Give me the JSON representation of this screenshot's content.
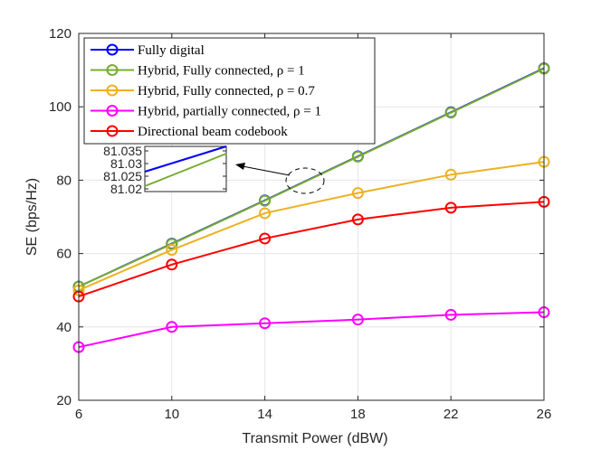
{
  "chart_data": {
    "type": "line",
    "title": "",
    "xlabel": "Transmit Power (dBW)",
    "ylabel": "SE (bps/Hz)",
    "x": [
      6,
      10,
      14,
      18,
      22,
      26
    ],
    "xlim": [
      6,
      26
    ],
    "ylim": [
      20,
      120
    ],
    "xticks": [
      6,
      10,
      14,
      18,
      22,
      26
    ],
    "yticks": [
      20,
      40,
      60,
      80,
      100,
      120
    ],
    "grid": true,
    "legend_position": "top-left",
    "series": [
      {
        "name": "Fully digital",
        "color": "#0000ff",
        "values": [
          51.0,
          62.7,
          74.5,
          86.5,
          98.5,
          110.5
        ]
      },
      {
        "name": "Hybrid, Fully connected, ρ = 1",
        "color": "#77ac30",
        "values": [
          51.0,
          62.6,
          74.4,
          86.4,
          98.4,
          110.4
        ]
      },
      {
        "name": "Hybrid, Fully connected, ρ = 0.7",
        "color": "#edb120",
        "values": [
          50.0,
          61.0,
          71.0,
          76.5,
          81.5,
          85.0
        ]
      },
      {
        "name": "Hybrid, partially connected, ρ = 1",
        "color": "#ff00ff",
        "values": [
          34.5,
          40.0,
          41.0,
          42.0,
          43.3,
          44.0
        ]
      },
      {
        "name": "Directional beam codebook",
        "color": "#ff0000",
        "values": [
          48.3,
          57.0,
          64.1,
          69.3,
          72.5,
          74.1
        ]
      }
    ],
    "inset": {
      "yticks": [
        "81.035",
        "81.03",
        "81.025",
        "81.02"
      ],
      "annotation": "zoom of lines near x ≈ 16 dBW"
    }
  }
}
